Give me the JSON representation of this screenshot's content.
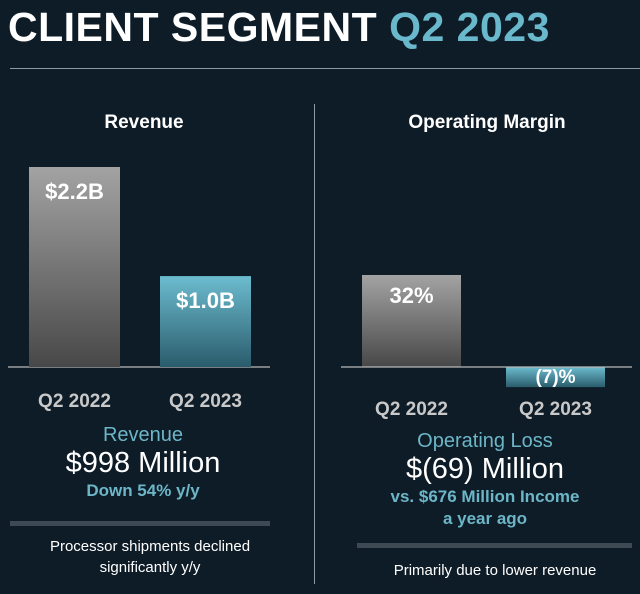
{
  "title": {
    "main": "CLIENT SEGMENT",
    "accent": "Q2 2023"
  },
  "colors": {
    "accent": "#69b8cc",
    "background": "#0e1c27",
    "prior_bar": "#8f8f8f",
    "current_bar": "#5ba7bb"
  },
  "chart_data": [
    {
      "type": "bar",
      "title": "Revenue",
      "categories": [
        "Q2 2022",
        "Q2 2023"
      ],
      "values": [
        2.2,
        1.0
      ],
      "data_labels": [
        "$2.2B",
        "$1.0B"
      ],
      "unit": "$B"
    },
    {
      "type": "bar",
      "title": "Operating Margin",
      "categories": [
        "Q2 2022",
        "Q2 2023"
      ],
      "values": [
        32,
        -7
      ],
      "data_labels": [
        "32%",
        "(7)%"
      ],
      "unit": "%"
    }
  ],
  "revenue_summary": {
    "label": "Revenue",
    "value": "$998 Million",
    "change": "Down 54% y/y"
  },
  "margin_summary": {
    "label": "Operating Loss",
    "value": "$(69) Million",
    "comparison": "vs. $676 Million Income",
    "comparison2": "a year ago"
  },
  "notes": {
    "left_line1": "Processor shipments declined",
    "left_line2": "significantly y/y",
    "right": "Primarily due to lower revenue"
  }
}
